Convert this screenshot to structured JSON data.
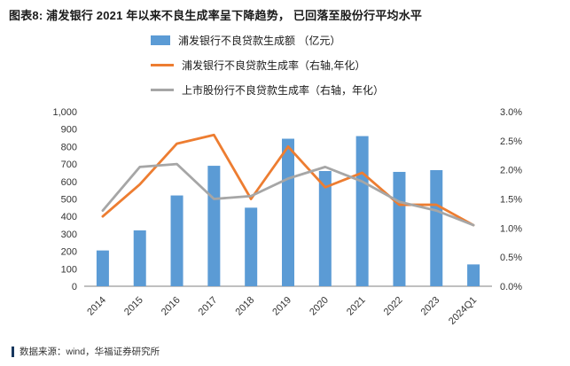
{
  "header": {
    "title": "图表8:  浦发银行 2021 年以来不良生成率呈下降趋势，  已回落至股份行平均水平"
  },
  "legend": [
    {
      "label": "浦发银行不良贷款生成额 （亿元）",
      "type": "bar",
      "color": "#5B9BD5"
    },
    {
      "label": "浦发银行不良贷款生成率（右轴,年化）",
      "type": "line",
      "color": "#ED7D31"
    },
    {
      "label": "上市股份行不良贷款生成率（右轴，年化）",
      "type": "line",
      "color": "#A6A6A6"
    }
  ],
  "chart_data": {
    "type": "bar",
    "title": "浦发银行 2021 年以来不良生成率呈下降趋势，已回落至股份行平均水平",
    "categories": [
      "2014",
      "2015",
      "2016",
      "2017",
      "2018",
      "2019",
      "2020",
      "2021",
      "2022",
      "2023",
      "2024Q1"
    ],
    "series": [
      {
        "name": "浦发银行不良贷款生成额 （亿元）",
        "type": "bar",
        "axis": "left",
        "color": "#5B9BD5",
        "values": [
          205,
          320,
          520,
          690,
          450,
          845,
          660,
          860,
          655,
          665,
          125
        ]
      },
      {
        "name": "浦发银行不良贷款生成率（右轴,年化）",
        "type": "line",
        "axis": "right",
        "color": "#ED7D31",
        "values": [
          1.2,
          1.75,
          2.45,
          2.6,
          1.5,
          2.4,
          1.7,
          1.95,
          1.4,
          1.4,
          1.05
        ]
      },
      {
        "name": "上市股份行不良贷款生成率（右轴，年化）",
        "type": "line",
        "axis": "right",
        "color": "#A6A6A6",
        "values": [
          1.3,
          2.05,
          2.1,
          1.5,
          1.55,
          1.85,
          2.05,
          1.8,
          1.45,
          1.3,
          1.05
        ]
      }
    ],
    "left_axis": {
      "min": 0,
      "max": 1000,
      "step": 100
    },
    "right_axis": {
      "min": 0,
      "max": 3.0,
      "step": 0.5,
      "suffix": "%"
    },
    "grid": false,
    "legend_position": "top",
    "axis_line_color": "#808080"
  },
  "footer": {
    "source": "数据来源：wind，华福证券研究所"
  }
}
